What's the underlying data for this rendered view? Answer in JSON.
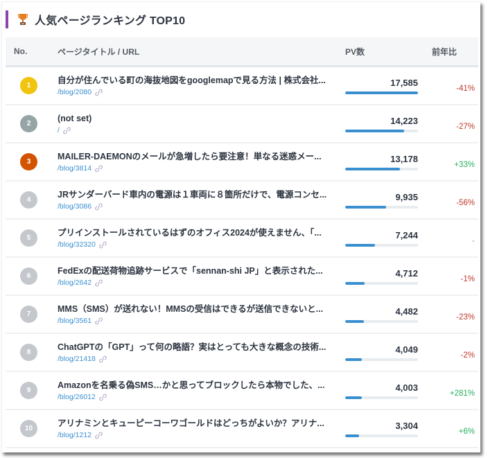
{
  "header": {
    "title": "人気ページランキング TOP10",
    "icon": "trophy-icon",
    "accent_color": "#8e44ad"
  },
  "table": {
    "columns": {
      "no": "No.",
      "title": "ページタイトル / URL",
      "pv": "PV数",
      "yoy": "前年比"
    },
    "bar_color": "#3a8fd0",
    "max_pv": 17585,
    "rows": [
      {
        "rank": "1",
        "badge_color": "#f1c40f",
        "title": "自分が住んでいる町の海抜地図をgooglemapで見る方法 | 株式会社...",
        "url": "/blog/2080",
        "pv": "17,585",
        "pv_value": 17585,
        "yoy": "-41%",
        "yoy_trend": "neg"
      },
      {
        "rank": "2",
        "badge_color": "#95a5a6",
        "title": "(not set)",
        "url": "/",
        "pv": "14,223",
        "pv_value": 14223,
        "yoy": "-27%",
        "yoy_trend": "neg"
      },
      {
        "rank": "3",
        "badge_color": "#d35400",
        "title": "MAILER-DAEMONのメールが急増したら要注意！単なる迷惑メー...",
        "url": "/blog/3814",
        "pv": "13,178",
        "pv_value": 13178,
        "yoy": "+33%",
        "yoy_trend": "pos"
      },
      {
        "rank": "4",
        "badge_color": "#c4c8cc",
        "title": "JRサンダーバード車内の電源は１車両に８箇所だけで、電源コンセ...",
        "url": "/blog/3086",
        "pv": "9,935",
        "pv_value": 9935,
        "yoy": "-56%",
        "yoy_trend": "neg"
      },
      {
        "rank": "5",
        "badge_color": "#c4c8cc",
        "title": "プリインストールされているはずのオフィス2024が使えません、「...",
        "url": "/blog/32320",
        "pv": "7,244",
        "pv_value": 7244,
        "yoy": "-",
        "yoy_trend": "neutral"
      },
      {
        "rank": "6",
        "badge_color": "#c4c8cc",
        "title": "FedExの配送荷物追跡サービスで「sennan-shi JP」と表示された...",
        "url": "/blog/2642",
        "pv": "4,712",
        "pv_value": 4712,
        "yoy": "-1%",
        "yoy_trend": "neg"
      },
      {
        "rank": "7",
        "badge_color": "#c4c8cc",
        "title": "MMS（SMS）が送れない！MMSの受信はできるが送信できないと...",
        "url": "/blog/3561",
        "pv": "4,482",
        "pv_value": 4482,
        "yoy": "-23%",
        "yoy_trend": "neg"
      },
      {
        "rank": "8",
        "badge_color": "#c4c8cc",
        "title": "ChatGPTの「GPT」って何の略語？実はとっても大きな概念の技術...",
        "url": "/blog/21418",
        "pv": "4,049",
        "pv_value": 4049,
        "yoy": "-2%",
        "yoy_trend": "neg"
      },
      {
        "rank": "9",
        "badge_color": "#c4c8cc",
        "title": "Amazonを名乗る偽SMS…かと思ってブロックしたら本物でした、...",
        "url": "/blog/26012",
        "pv": "4,003",
        "pv_value": 4003,
        "yoy": "+281%",
        "yoy_trend": "pos"
      },
      {
        "rank": "10",
        "badge_color": "#c4c8cc",
        "title": "アリナミンとキューピーコーワゴールドはどっちがよいか？アリナ...",
        "url": "/blog/1212",
        "pv": "3,304",
        "pv_value": 3304,
        "yoy": "+6%",
        "yoy_trend": "pos"
      }
    ]
  }
}
